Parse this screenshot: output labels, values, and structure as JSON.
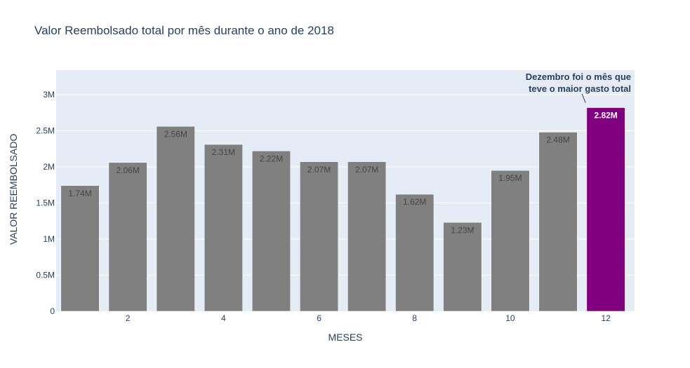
{
  "chart_data": {
    "type": "bar",
    "title": "Valor Reembolsado total por mês durante o ano de 2018",
    "xlabel": "MESES",
    "ylabel": "VALOR REEMBOLSADO",
    "categories": [
      1,
      2,
      3,
      4,
      5,
      6,
      7,
      8,
      9,
      10,
      11,
      12
    ],
    "x_tick_labels": [
      "2",
      "4",
      "6",
      "8",
      "10",
      "12"
    ],
    "y_tick_labels": [
      "0",
      "0.5M",
      "1M",
      "1.5M",
      "2M",
      "2.5M",
      "3M"
    ],
    "values": [
      1740000,
      2060000,
      2560000,
      2310000,
      2220000,
      2070000,
      2070000,
      1620000,
      1230000,
      1950000,
      2480000,
      2820000
    ],
    "value_labels": [
      "1.74M",
      "2.06M",
      "2.56M",
      "2.31M",
      "2.22M",
      "2.07M",
      "2.07M",
      "1.62M",
      "1.23M",
      "1.95M",
      "2.48M",
      "2.82M"
    ],
    "ylim": [
      0,
      3340000
    ],
    "xlim": [
      0.5,
      12.6
    ],
    "grid": true,
    "colors": {
      "bar": "#808080",
      "highlight": "#800080",
      "plot_background": "#e5ecf6",
      "gridline": "#ffffff",
      "text": "#2a3f5f",
      "label_dark": "#444444",
      "label_light": "#ffffff"
    },
    "highlight_index": 11,
    "annotation": {
      "lines": [
        "Dezembro foi o mês que",
        "teve o maior gasto total"
      ],
      "target_index": 11
    }
  }
}
